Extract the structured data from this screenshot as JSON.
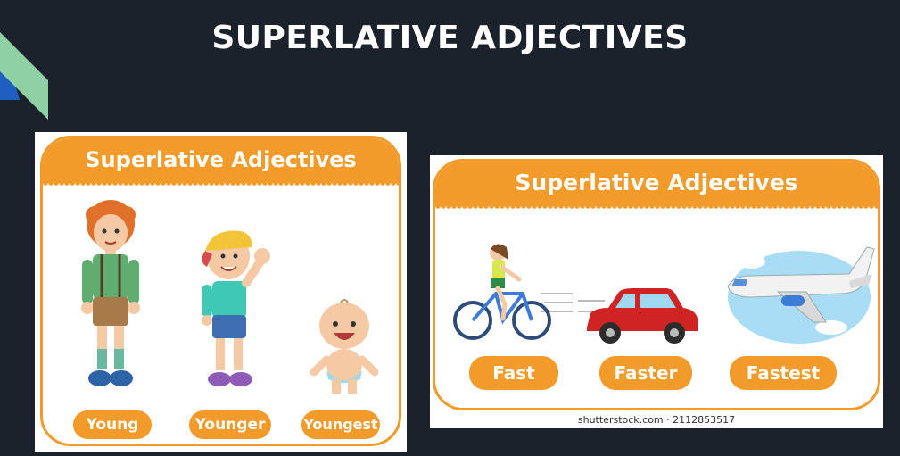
{
  "slide": {
    "title": "SUPERLATIVE ADJECTIVES"
  },
  "card_left": {
    "banner": "Superlative Adjectives",
    "labels": [
      "Young",
      "Younger",
      "Youngest"
    ]
  },
  "card_right": {
    "banner": "Superlative Adjectives",
    "labels": [
      "Fast",
      "Faster",
      "Fastest"
    ],
    "watermark": "shutterstock.com · 2112853517"
  },
  "colors": {
    "background": "#1c222c",
    "accent_orange": "#f29b2a",
    "corner_green": "#8fd1a4",
    "corner_blue": "#1f5fbf"
  }
}
